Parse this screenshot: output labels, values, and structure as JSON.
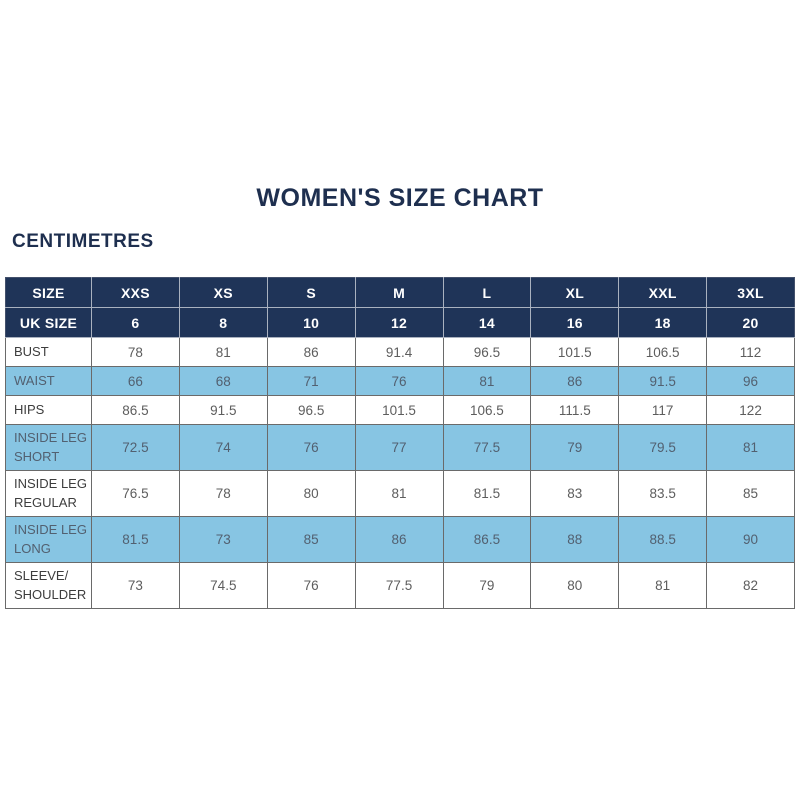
{
  "page": {
    "title": "WOMEN'S SIZE CHART",
    "unit_label": "CENTIMETRES"
  },
  "colors": {
    "navy_header_bg": "#1f3458",
    "title_text": "#1e2f4f",
    "row_highlight_blue": "#87c5e3",
    "row_white": "#ffffff",
    "label_text": "#3d3d3d",
    "value_text": "#5d5d5d",
    "grid_border": "#6a6a6a"
  },
  "chart_data": {
    "type": "table",
    "title": "WOMEN'S SIZE CHART",
    "unit": "CENTIMETRES",
    "header_rows": [
      {
        "label": "SIZE",
        "values": [
          "XXS",
          "XS",
          "S",
          "M",
          "L",
          "XL",
          "XXL",
          "3XL"
        ]
      },
      {
        "label": "UK SIZE",
        "values": [
          "6",
          "8",
          "10",
          "12",
          "14",
          "16",
          "18",
          "20"
        ]
      }
    ],
    "rows": [
      {
        "label": "BUST",
        "highlight": false,
        "values": [
          "78",
          "81",
          "86",
          "91.4",
          "96.5",
          "101.5",
          "106.5",
          "112"
        ]
      },
      {
        "label": "WAIST",
        "highlight": true,
        "values": [
          "66",
          "68",
          "71",
          "76",
          "81",
          "86",
          "91.5",
          "96"
        ]
      },
      {
        "label": "HIPS",
        "highlight": false,
        "values": [
          "86.5",
          "91.5",
          "96.5",
          "101.5",
          "106.5",
          "111.5",
          "117",
          "122"
        ]
      },
      {
        "label": "INSIDE LEG SHORT",
        "highlight": true,
        "values": [
          "72.5",
          "74",
          "76",
          "77",
          "77.5",
          "79",
          "79.5",
          "81"
        ]
      },
      {
        "label": "INSIDE LEG REGULAR",
        "highlight": false,
        "values": [
          "76.5",
          "78",
          "80",
          "81",
          "81.5",
          "83",
          "83.5",
          "85"
        ]
      },
      {
        "label": "INSIDE LEG LONG",
        "highlight": true,
        "values": [
          "81.5",
          "73",
          "85",
          "86",
          "86.5",
          "88",
          "88.5",
          "90"
        ]
      },
      {
        "label": "SLEEVE/ SHOULDER",
        "highlight": false,
        "values": [
          "73",
          "74.5",
          "76",
          "77.5",
          "79",
          "80",
          "81",
          "82"
        ]
      }
    ]
  }
}
